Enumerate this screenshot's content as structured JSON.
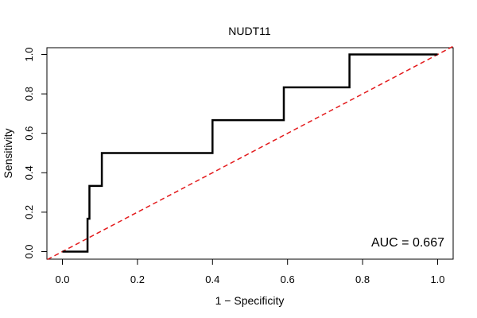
{
  "chart_data": {
    "type": "line",
    "title": "NUDT11",
    "xlabel": "1 − Specificity",
    "ylabel": "Sensitivity",
    "xlim": [
      0,
      1
    ],
    "ylim": [
      0,
      1
    ],
    "x_ticks": [
      0.0,
      0.2,
      0.4,
      0.6,
      0.8,
      1.0
    ],
    "x_tick_labels": [
      "0.0",
      "0.2",
      "0.4",
      "0.6",
      "0.8",
      "1.0"
    ],
    "y_ticks": [
      0.0,
      0.2,
      0.4,
      0.6,
      0.8,
      1.0
    ],
    "y_tick_labels": [
      "0.0",
      "0.2",
      "0.4",
      "0.6",
      "0.8",
      "1.0"
    ],
    "grid": false,
    "series": [
      {
        "name": "ROC",
        "color": "#000000",
        "points": [
          [
            0.0,
            0.0
          ],
          [
            0.067,
            0.0
          ],
          [
            0.067,
            0.167
          ],
          [
            0.072,
            0.167
          ],
          [
            0.072,
            0.333
          ],
          [
            0.105,
            0.333
          ],
          [
            0.105,
            0.5
          ],
          [
            0.4,
            0.5
          ],
          [
            0.4,
            0.667
          ],
          [
            0.59,
            0.667
          ],
          [
            0.59,
            0.833
          ],
          [
            0.765,
            0.833
          ],
          [
            0.765,
            1.0
          ],
          [
            1.0,
            1.0
          ]
        ]
      },
      {
        "name": "reference",
        "color": "#e31a1c",
        "dashed": true,
        "points": [
          [
            0,
            0
          ],
          [
            1,
            1
          ]
        ]
      }
    ],
    "annotation": "AUC = 0.667"
  }
}
